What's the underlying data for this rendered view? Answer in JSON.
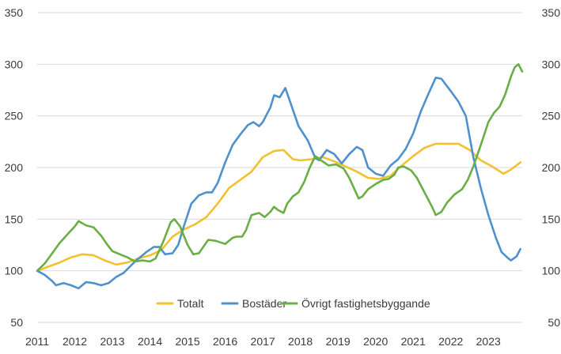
{
  "chart_data": {
    "type": "line",
    "title": "",
    "xlabel": "",
    "ylabel": "",
    "xlim": [
      2011,
      2023.9
    ],
    "ylim": [
      50,
      350
    ],
    "y_ticks": [
      50,
      100,
      150,
      200,
      250,
      300,
      350
    ],
    "x_ticks": [
      2011,
      2012,
      2013,
      2014,
      2015,
      2016,
      2017,
      2018,
      2019,
      2020,
      2021,
      2022,
      2023
    ],
    "y_tick_labels": [
      "50",
      "100",
      "150",
      "200",
      "250",
      "300",
      "350"
    ],
    "x_tick_labels": [
      "2011",
      "2012",
      "2013",
      "2014",
      "2015",
      "2016",
      "2017",
      "2018",
      "2019",
      "2020",
      "2021",
      "2022",
      "2023"
    ],
    "secondary_y_axis": true,
    "grid": {
      "horizontal": true,
      "vertical": false
    },
    "legend_position": "bottom-inside",
    "series": [
      {
        "name": "Totalt",
        "color": "#f2c12e",
        "points": [
          [
            2011.0,
            100
          ],
          [
            2011.3,
            104
          ],
          [
            2011.6,
            108
          ],
          [
            2011.9,
            113
          ],
          [
            2012.2,
            116
          ],
          [
            2012.5,
            115
          ],
          [
            2012.8,
            110
          ],
          [
            2013.1,
            106
          ],
          [
            2013.4,
            108
          ],
          [
            2013.7,
            112
          ],
          [
            2014.0,
            115
          ],
          [
            2014.3,
            120
          ],
          [
            2014.6,
            133
          ],
          [
            2014.9,
            140
          ],
          [
            2015.2,
            145
          ],
          [
            2015.5,
            152
          ],
          [
            2015.8,
            165
          ],
          [
            2016.1,
            180
          ],
          [
            2016.4,
            188
          ],
          [
            2016.7,
            196
          ],
          [
            2017.0,
            210
          ],
          [
            2017.3,
            216
          ],
          [
            2017.55,
            217
          ],
          [
            2017.8,
            208
          ],
          [
            2018.0,
            207
          ],
          [
            2018.3,
            208
          ],
          [
            2018.6,
            210
          ],
          [
            2018.9,
            206
          ],
          [
            2019.2,
            201
          ],
          [
            2019.5,
            196
          ],
          [
            2019.8,
            190
          ],
          [
            2020.1,
            189
          ],
          [
            2020.4,
            192
          ],
          [
            2020.7,
            202
          ],
          [
            2021.0,
            211
          ],
          [
            2021.3,
            219
          ],
          [
            2021.6,
            223
          ],
          [
            2021.9,
            223
          ],
          [
            2022.2,
            223
          ],
          [
            2022.5,
            217
          ],
          [
            2022.8,
            207
          ],
          [
            2023.1,
            201
          ],
          [
            2023.4,
            194
          ],
          [
            2023.6,
            198
          ],
          [
            2023.85,
            205
          ]
        ]
      },
      {
        "name": "Bostäder",
        "color": "#4f91cc",
        "points": [
          [
            2011.0,
            100
          ],
          [
            2011.2,
            96
          ],
          [
            2011.4,
            90
          ],
          [
            2011.5,
            86
          ],
          [
            2011.7,
            88
          ],
          [
            2011.9,
            86
          ],
          [
            2012.1,
            83
          ],
          [
            2012.3,
            89
          ],
          [
            2012.5,
            88
          ],
          [
            2012.7,
            86
          ],
          [
            2012.9,
            88
          ],
          [
            2013.1,
            94
          ],
          [
            2013.3,
            98
          ],
          [
            2013.6,
            109
          ],
          [
            2013.9,
            118
          ],
          [
            2014.1,
            123
          ],
          [
            2014.25,
            123
          ],
          [
            2014.4,
            116
          ],
          [
            2014.6,
            117
          ],
          [
            2014.75,
            125
          ],
          [
            2014.9,
            143
          ],
          [
            2015.1,
            165
          ],
          [
            2015.3,
            173
          ],
          [
            2015.5,
            176
          ],
          [
            2015.65,
            176
          ],
          [
            2015.8,
            185
          ],
          [
            2016.0,
            205
          ],
          [
            2016.2,
            222
          ],
          [
            2016.4,
            232
          ],
          [
            2016.6,
            241
          ],
          [
            2016.75,
            244
          ],
          [
            2016.9,
            240
          ],
          [
            2017.0,
            244
          ],
          [
            2017.2,
            258
          ],
          [
            2017.3,
            270
          ],
          [
            2017.45,
            268
          ],
          [
            2017.6,
            277
          ],
          [
            2017.8,
            256
          ],
          [
            2017.95,
            240
          ],
          [
            2018.2,
            226
          ],
          [
            2018.4,
            209
          ],
          [
            2018.5,
            207
          ],
          [
            2018.7,
            217
          ],
          [
            2018.9,
            213
          ],
          [
            2019.1,
            204
          ],
          [
            2019.3,
            213
          ],
          [
            2019.5,
            220
          ],
          [
            2019.65,
            217
          ],
          [
            2019.8,
            200
          ],
          [
            2020.0,
            194
          ],
          [
            2020.2,
            192
          ],
          [
            2020.4,
            202
          ],
          [
            2020.6,
            208
          ],
          [
            2020.8,
            218
          ],
          [
            2021.0,
            233
          ],
          [
            2021.2,
            254
          ],
          [
            2021.4,
            271
          ],
          [
            2021.6,
            287
          ],
          [
            2021.75,
            286
          ],
          [
            2022.0,
            274
          ],
          [
            2022.2,
            264
          ],
          [
            2022.4,
            250
          ],
          [
            2022.6,
            210
          ],
          [
            2022.8,
            180
          ],
          [
            2023.0,
            154
          ],
          [
            2023.2,
            132
          ],
          [
            2023.35,
            118
          ],
          [
            2023.5,
            113
          ],
          [
            2023.6,
            110
          ],
          [
            2023.75,
            114
          ],
          [
            2023.85,
            121
          ]
        ]
      },
      {
        "name": "Övrigt fastighetsbyggande",
        "color": "#6aae46",
        "points": [
          [
            2011.0,
            100
          ],
          [
            2011.2,
            107
          ],
          [
            2011.4,
            117
          ],
          [
            2011.6,
            127
          ],
          [
            2011.8,
            135
          ],
          [
            2012.0,
            143
          ],
          [
            2012.1,
            148
          ],
          [
            2012.3,
            144
          ],
          [
            2012.5,
            142
          ],
          [
            2012.7,
            134
          ],
          [
            2012.85,
            126
          ],
          [
            2013.0,
            119
          ],
          [
            2013.2,
            116
          ],
          [
            2013.4,
            113
          ],
          [
            2013.6,
            109
          ],
          [
            2013.8,
            110
          ],
          [
            2014.0,
            109
          ],
          [
            2014.15,
            112
          ],
          [
            2014.35,
            128
          ],
          [
            2014.55,
            147
          ],
          [
            2014.65,
            150
          ],
          [
            2014.8,
            143
          ],
          [
            2015.0,
            125
          ],
          [
            2015.15,
            116
          ],
          [
            2015.3,
            117
          ],
          [
            2015.55,
            130
          ],
          [
            2015.75,
            129
          ],
          [
            2016.0,
            126
          ],
          [
            2016.2,
            132
          ],
          [
            2016.3,
            133
          ],
          [
            2016.45,
            133
          ],
          [
            2016.55,
            139
          ],
          [
            2016.7,
            154
          ],
          [
            2016.9,
            156
          ],
          [
            2017.05,
            152
          ],
          [
            2017.2,
            157
          ],
          [
            2017.3,
            162
          ],
          [
            2017.4,
            159
          ],
          [
            2017.55,
            156
          ],
          [
            2017.65,
            165
          ],
          [
            2017.8,
            172
          ],
          [
            2017.95,
            176
          ],
          [
            2018.1,
            186
          ],
          [
            2018.25,
            200
          ],
          [
            2018.4,
            211
          ],
          [
            2018.55,
            207
          ],
          [
            2018.75,
            202
          ],
          [
            2018.95,
            203
          ],
          [
            2019.15,
            199
          ],
          [
            2019.3,
            190
          ],
          [
            2019.45,
            178
          ],
          [
            2019.55,
            170
          ],
          [
            2019.65,
            172
          ],
          [
            2019.8,
            179
          ],
          [
            2020.0,
            184
          ],
          [
            2020.2,
            188
          ],
          [
            2020.35,
            189
          ],
          [
            2020.5,
            193
          ],
          [
            2020.6,
            200
          ],
          [
            2020.75,
            201
          ],
          [
            2020.95,
            197
          ],
          [
            2021.1,
            190
          ],
          [
            2021.3,
            176
          ],
          [
            2021.5,
            162
          ],
          [
            2021.6,
            154
          ],
          [
            2021.75,
            157
          ],
          [
            2021.9,
            166
          ],
          [
            2022.1,
            174
          ],
          [
            2022.3,
            179
          ],
          [
            2022.45,
            188
          ],
          [
            2022.6,
            201
          ],
          [
            2022.8,
            222
          ],
          [
            2023.0,
            244
          ],
          [
            2023.15,
            253
          ],
          [
            2023.3,
            259
          ],
          [
            2023.45,
            271
          ],
          [
            2023.6,
            288
          ],
          [
            2023.7,
            297
          ],
          [
            2023.8,
            300
          ],
          [
            2023.9,
            293
          ]
        ]
      }
    ]
  }
}
